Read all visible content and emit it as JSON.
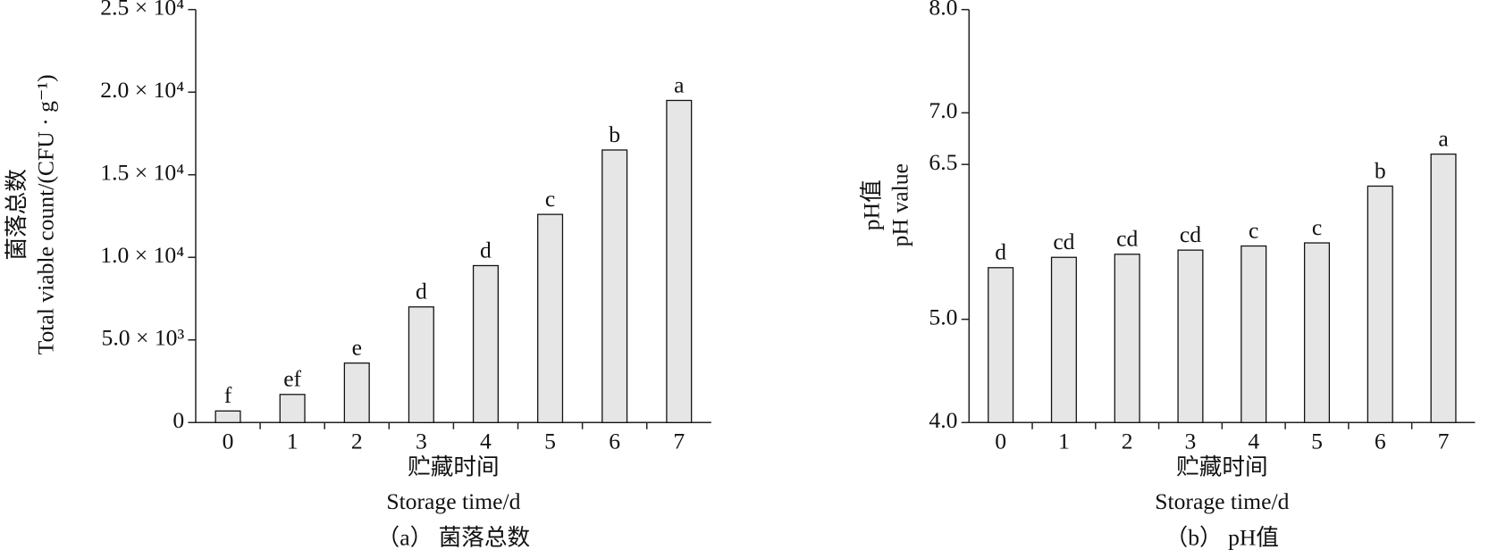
{
  "chart_data": [
    {
      "type": "bar",
      "title": "（a） 菌落总数",
      "ylabel": [
        "菌落总数",
        "Total viable count/(CFU · g⁻¹)"
      ],
      "xlabel": [
        "贮藏时间",
        "Storage time/d"
      ],
      "categories": [
        "0",
        "1",
        "2",
        "3",
        "4",
        "5",
        "6",
        "7"
      ],
      "values": [
        700,
        1700,
        3600,
        7000,
        9500,
        12600,
        16500,
        19500
      ],
      "annotations": [
        "f",
        "ef",
        "e",
        "d",
        "d",
        "c",
        "b",
        "a"
      ],
      "color": "#e6e6e6",
      "ylim": [
        0,
        25000
      ],
      "yticks": [
        0,
        {
          "value": 5000,
          "label": "5.0 × 10³"
        },
        {
          "value": 10000,
          "label": "1.0 × 10⁴"
        },
        {
          "value": 15000,
          "label": "1.5 × 10⁴"
        },
        {
          "value": 20000,
          "label": "2.0 × 10⁴"
        },
        {
          "value": 25000,
          "label": "2.5 × 10⁴"
        }
      ],
      "grid": false
    },
    {
      "type": "bar",
      "title": "（b） pH值",
      "ylabel": [
        "pH值",
        "pH value"
      ],
      "xlabel": [
        "贮藏时间",
        "Storage time/d"
      ],
      "categories": [
        "0",
        "1",
        "2",
        "3",
        "4",
        "5",
        "6",
        "7"
      ],
      "values": [
        5.5,
        5.6,
        5.63,
        5.67,
        5.71,
        5.74,
        6.29,
        6.6
      ],
      "annotations": [
        "d",
        "cd",
        "cd",
        "cd",
        "c",
        "c",
        "b",
        "a"
      ],
      "color": "#e6e6e6",
      "ylim": [
        4,
        8
      ],
      "yticks": [
        {
          "value": 4,
          "label": "4.0"
        },
        {
          "value": 5,
          "label": "5.0"
        },
        6.5,
        {
          "value": 7,
          "label": "7.0"
        },
        {
          "value": 8,
          "label": "8.0"
        }
      ],
      "grid": false
    }
  ]
}
